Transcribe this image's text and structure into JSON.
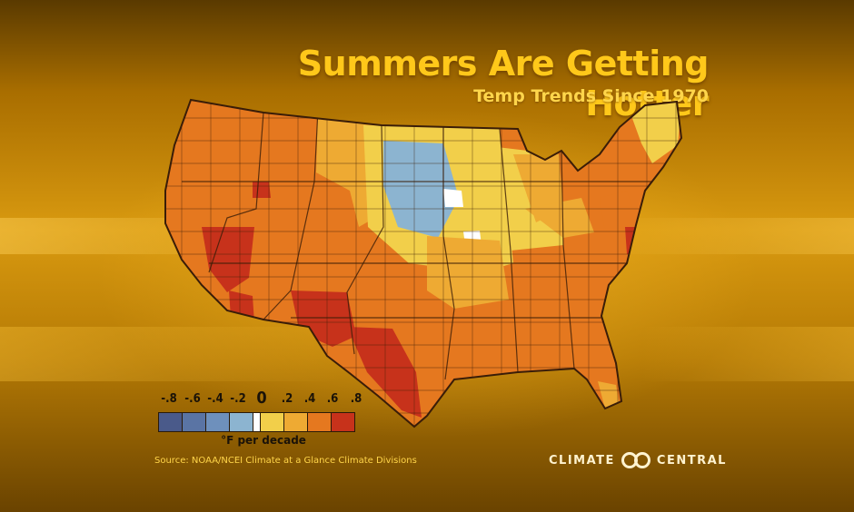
{
  "header": {
    "title": "Summers Are Getting Hotter",
    "subtitle": "Temp Trends Since 1970"
  },
  "legend": {
    "ticks": [
      "-.8",
      "-.6",
      "-.4",
      "-.2",
      "0",
      ".2",
      ".4",
      ".6",
      ".8"
    ],
    "unit": "°F per decade",
    "swatches": [
      "#4a5a8a",
      "#5a74a4",
      "#6e90bc",
      "#8cb4d0",
      "#ffffff",
      "#f2cf4a",
      "#eeaa33",
      "#e5781f",
      "#c7321b"
    ]
  },
  "footer": {
    "source": "Source: NOAA/NCEI Climate at a Glance Climate Divisions",
    "brand_left": "CLIMATE",
    "brand_right": "CENTRAL"
  },
  "colors": {
    "title": "#ffc81a",
    "map_outline": "#3a1d08",
    "warm_dominant": "#e5781f",
    "hot": "#c7321b",
    "mild": "#f2cf4a",
    "cooling": "#8cb4d0"
  }
}
